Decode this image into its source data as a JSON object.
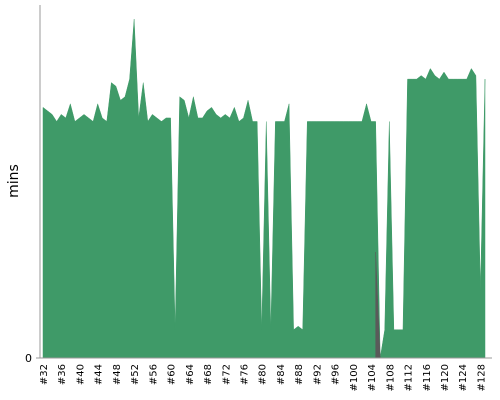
{
  "chart_data": {
    "type": "area",
    "ylabel": "mins",
    "categories": [
      "#32",
      null,
      null,
      null,
      "#36",
      null,
      null,
      null,
      "#40",
      null,
      null,
      null,
      "#44",
      null,
      null,
      null,
      "#48",
      null,
      null,
      null,
      "#52",
      null,
      null,
      null,
      "#56",
      null,
      null,
      null,
      "#60",
      null,
      null,
      null,
      "#64",
      null,
      null,
      null,
      "#68",
      null,
      null,
      null,
      "#72",
      null,
      null,
      null,
      "#76",
      null,
      null,
      null,
      "#80",
      null,
      null,
      null,
      "#84",
      null,
      null,
      null,
      "#88",
      null,
      null,
      null,
      "#92",
      null,
      null,
      null,
      "#96",
      null,
      null,
      null,
      "#100",
      null,
      null,
      null,
      "#104",
      null,
      null,
      null,
      "#108",
      null,
      null,
      null,
      "#112",
      null,
      null,
      null,
      "#116",
      null,
      null,
      null,
      "#120",
      null,
      null,
      null,
      "#124",
      null,
      null,
      null,
      "#128",
      null
    ],
    "series": [
      {
        "color": "#3f9a68",
        "values": [
          71,
          70,
          69,
          67,
          69,
          68,
          72,
          67,
          68,
          69,
          68,
          67,
          72,
          68,
          67,
          78,
          77,
          73,
          74,
          79,
          96,
          68,
          78,
          67,
          69,
          68,
          67,
          68,
          68,
          8,
          74,
          73,
          68,
          74,
          68,
          68,
          70,
          71,
          69,
          68,
          69,
          68,
          71,
          67,
          68,
          73,
          67,
          67,
          8,
          67,
          8,
          67,
          67,
          67,
          72,
          8,
          9,
          8,
          67,
          67,
          67,
          67,
          67,
          67,
          67,
          67,
          67,
          67,
          67,
          67,
          67,
          72,
          67,
          67,
          0,
          8,
          67,
          8,
          8,
          8,
          79,
          79,
          79,
          80,
          79,
          82,
          80,
          79,
          81,
          79,
          79,
          79,
          79,
          79,
          82,
          80,
          19,
          79
        ]
      },
      {
        "color": "#5a5a5a",
        "values": [
          null,
          null,
          null,
          null,
          null,
          null,
          null,
          null,
          null,
          null,
          null,
          null,
          null,
          null,
          null,
          null,
          null,
          null,
          null,
          null,
          null,
          null,
          null,
          null,
          null,
          null,
          null,
          null,
          null,
          null,
          null,
          null,
          null,
          null,
          null,
          null,
          null,
          null,
          null,
          null,
          null,
          null,
          null,
          null,
          null,
          null,
          null,
          null,
          null,
          null,
          null,
          null,
          null,
          null,
          null,
          null,
          null,
          null,
          null,
          null,
          null,
          null,
          null,
          null,
          null,
          null,
          null,
          null,
          null,
          null,
          null,
          null,
          null,
          30,
          0,
          null,
          null,
          null,
          null,
          null,
          null,
          null,
          null,
          null,
          null,
          null,
          null,
          null,
          null,
          null,
          null,
          null,
          null,
          null,
          null,
          null,
          null,
          null
        ]
      }
    ],
    "ylim": [
      0,
      100
    ],
    "yticks": [
      0
    ]
  }
}
